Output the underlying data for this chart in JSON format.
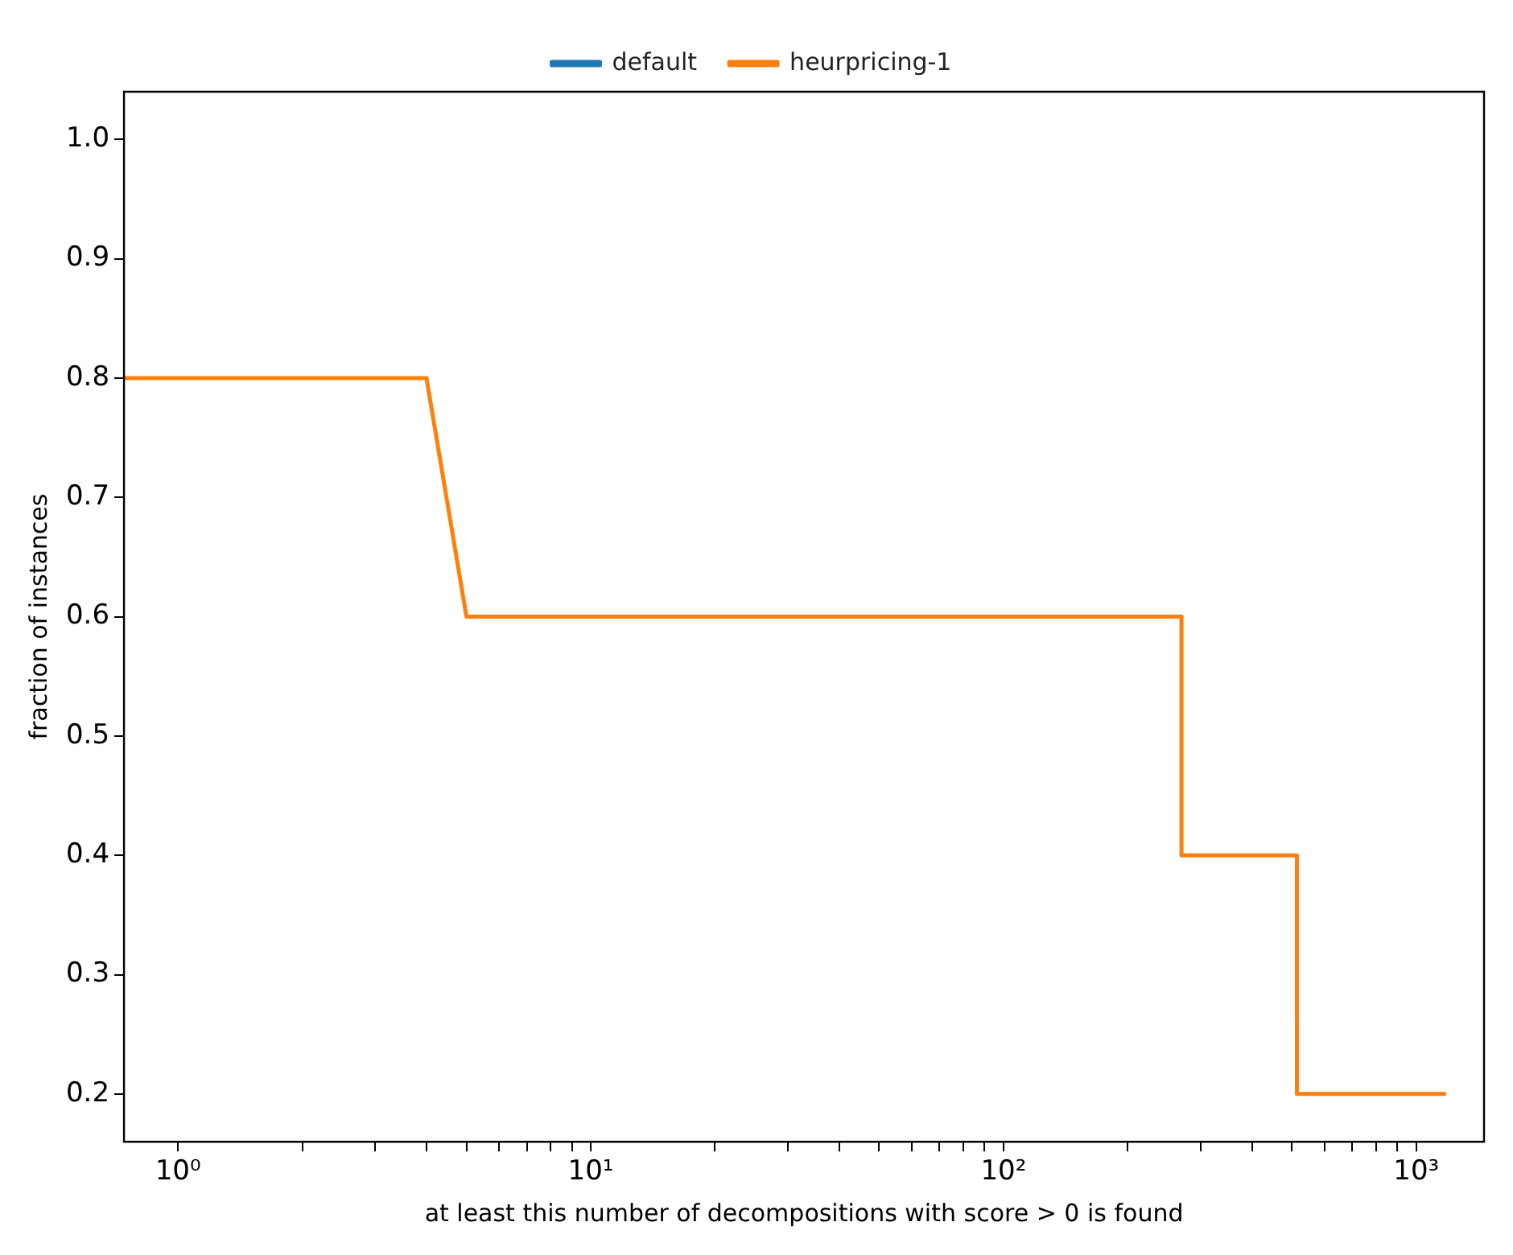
{
  "chart_data": {
    "type": "line",
    "xlabel": "at least this number of decompositions with score > 0 is found",
    "ylabel": "fraction of instances",
    "x": [
      0.74,
      4,
      5,
      270,
      270,
      514,
      514,
      1170
    ],
    "series": [
      {
        "name": "default",
        "color": "#1f77b4",
        "values": [
          null,
          null,
          null,
          null,
          null,
          null,
          null,
          null
        ]
      },
      {
        "name": "heurpricing-1",
        "color": "#ff7f0e",
        "values": [
          0.8,
          0.8,
          0.6,
          0.6,
          0.4,
          0.4,
          0.2,
          0.2
        ]
      }
    ],
    "log": "x",
    "xlim": [
      0.74,
      1460
    ],
    "xticks": [
      {
        "value": 1,
        "label": "10⁰"
      },
      {
        "value": 2,
        "label": null
      },
      {
        "value": 3,
        "label": null
      },
      {
        "value": 4,
        "label": null
      },
      {
        "value": 5,
        "label": null
      },
      {
        "value": 6,
        "label": null
      },
      {
        "value": 7,
        "label": null
      },
      {
        "value": 8,
        "label": null
      },
      {
        "value": 9,
        "label": null
      },
      {
        "value": 10,
        "label": "10¹"
      },
      {
        "value": 20,
        "label": null
      },
      {
        "value": 30,
        "label": null
      },
      {
        "value": 40,
        "label": null
      },
      {
        "value": 50,
        "label": null
      },
      {
        "value": 60,
        "label": null
      },
      {
        "value": 70,
        "label": null
      },
      {
        "value": 80,
        "label": null
      },
      {
        "value": 90,
        "label": null
      },
      {
        "value": 100,
        "label": "10²"
      },
      {
        "value": 200,
        "label": null
      },
      {
        "value": 300,
        "label": null
      },
      {
        "value": 400,
        "label": null
      },
      {
        "value": 500,
        "label": null
      },
      {
        "value": 600,
        "label": null
      },
      {
        "value": 700,
        "label": null
      },
      {
        "value": 800,
        "label": null
      },
      {
        "value": 900,
        "label": null
      },
      {
        "value": 1000,
        "label": "10³"
      }
    ],
    "ylim": [
      0.16,
      1.04
    ],
    "yticks": [
      0.2,
      0.3,
      0.4,
      0.5,
      0.6,
      0.7,
      0.8,
      0.9,
      {
        "value": 1,
        "label": "1.0"
      }
    ],
    "grid": false,
    "legend": "top",
    "marker": "none",
    "line_style": "solid"
  }
}
